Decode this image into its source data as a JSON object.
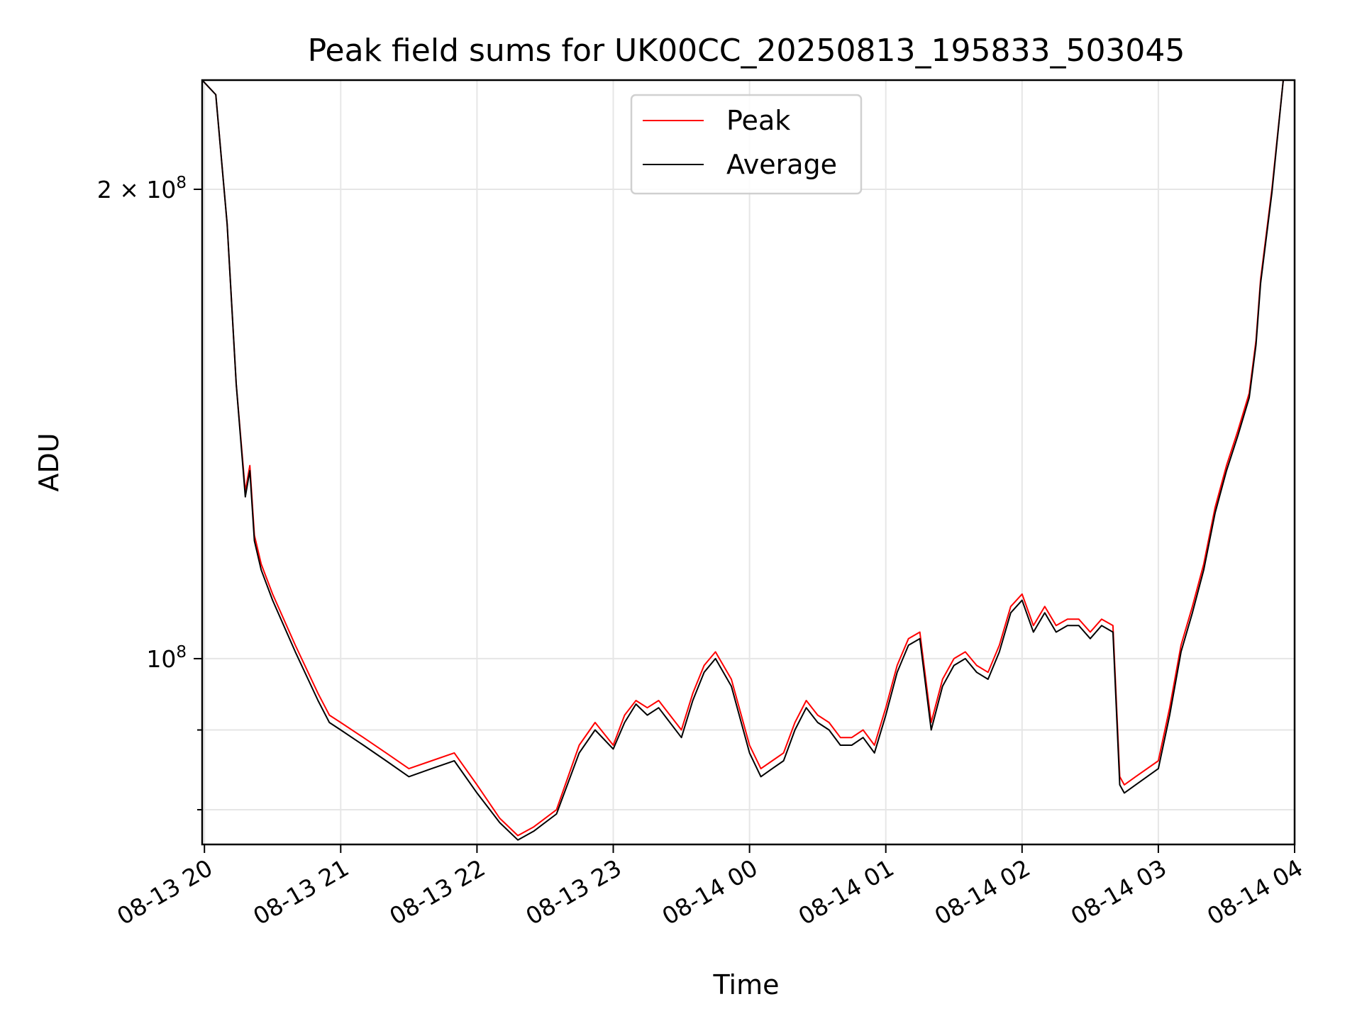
{
  "chart_data": {
    "type": "line",
    "title": "Peak field sums for UK00CC_20250813_195833_503045",
    "xlabel": "Time",
    "ylabel": "ADU",
    "yscale": "log",
    "ylim": [
      76000000,
      235000000
    ],
    "xlim": [
      "08-13 19:59",
      "08-14 04:00"
    ],
    "x_ticks": [
      "08-13 20",
      "08-13 21",
      "08-13 22",
      "08-13 23",
      "08-14 00",
      "08-14 01",
      "08-14 02",
      "08-14 03",
      "08-14 04"
    ],
    "y_ticks_major": [
      {
        "value": 200000000,
        "label": "2 × 10^8"
      },
      {
        "value": 100000000,
        "label": "10^8"
      }
    ],
    "y_ticks_minor": [
      80000000,
      90000000
    ],
    "grid": true,
    "legend": "top-center",
    "colors": {
      "Peak": "#ff0000",
      "Average": "#000000"
    },
    "series": [
      {
        "name": "Peak",
        "x": [
          "08-13 19:59",
          "08-13 20:05",
          "08-13 20:10",
          "08-13 20:14",
          "08-13 20:18",
          "08-13 20:20",
          "08-13 20:22",
          "08-13 20:25",
          "08-13 20:30",
          "08-13 20:40",
          "08-13 20:50",
          "08-13 20:55",
          "08-13 21:00",
          "08-13 21:10",
          "08-13 21:20",
          "08-13 21:30",
          "08-13 21:40",
          "08-13 21:50",
          "08-13 22:00",
          "08-13 22:10",
          "08-13 22:18",
          "08-13 22:25",
          "08-13 22:35",
          "08-13 22:45",
          "08-13 22:52",
          "08-13 23:00",
          "08-13 23:05",
          "08-13 23:10",
          "08-13 23:15",
          "08-13 23:20",
          "08-13 23:30",
          "08-13 23:35",
          "08-13 23:40",
          "08-13 23:45",
          "08-13 23:52",
          "08-14 00:00",
          "08-14 00:05",
          "08-14 00:10",
          "08-14 00:15",
          "08-14 00:20",
          "08-14 00:25",
          "08-14 00:30",
          "08-14 00:35",
          "08-14 00:40",
          "08-14 00:45",
          "08-14 00:50",
          "08-14 00:55",
          "08-14 01:00",
          "08-14 01:05",
          "08-14 01:10",
          "08-14 01:15",
          "08-14 01:20",
          "08-14 01:25",
          "08-14 01:30",
          "08-14 01:35",
          "08-14 01:40",
          "08-14 01:45",
          "08-14 01:50",
          "08-14 01:55",
          "08-14 02:00",
          "08-14 02:05",
          "08-14 02:10",
          "08-14 02:15",
          "08-14 02:20",
          "08-14 02:25",
          "08-14 02:30",
          "08-14 02:35",
          "08-14 02:40",
          "08-14 02:43",
          "08-14 02:45",
          "08-14 02:50",
          "08-14 03:00",
          "08-14 03:05",
          "08-14 03:10",
          "08-14 03:15",
          "08-14 03:20",
          "08-14 03:25",
          "08-14 03:30",
          "08-14 03:35",
          "08-14 03:40",
          "08-14 03:43",
          "08-14 03:45",
          "08-14 03:50",
          "08-14 03:55"
        ],
        "values": [
          235000000,
          230000000,
          190000000,
          150000000,
          128000000,
          133000000,
          120000000,
          115000000,
          110000000,
          102000000,
          95000000,
          92000000,
          91000000,
          89000000,
          87000000,
          85000000,
          86000000,
          87000000,
          83000000,
          79000000,
          77000000,
          78000000,
          80000000,
          88000000,
          91000000,
          88000000,
          92000000,
          94000000,
          93000000,
          94000000,
          90000000,
          95000000,
          99000000,
          101000000,
          97000000,
          88000000,
          85000000,
          86000000,
          87000000,
          91000000,
          94000000,
          92000000,
          91000000,
          89000000,
          89000000,
          90000000,
          88000000,
          93000000,
          99000000,
          103000000,
          104000000,
          91000000,
          97000000,
          100000000,
          101000000,
          99000000,
          98000000,
          102000000,
          108000000,
          110000000,
          105000000,
          108000000,
          105000000,
          106000000,
          106000000,
          104000000,
          106000000,
          105000000,
          84000000,
          83000000,
          84000000,
          86000000,
          93000000,
          102000000,
          108000000,
          115000000,
          125000000,
          133000000,
          140000000,
          148000000,
          160000000,
          175000000,
          200000000,
          235000000
        ]
      },
      {
        "name": "Average",
        "x": [
          "08-13 19:59",
          "08-13 20:05",
          "08-13 20:10",
          "08-13 20:14",
          "08-13 20:18",
          "08-13 20:20",
          "08-13 20:22",
          "08-13 20:25",
          "08-13 20:30",
          "08-13 20:40",
          "08-13 20:50",
          "08-13 20:55",
          "08-13 21:00",
          "08-13 21:10",
          "08-13 21:20",
          "08-13 21:30",
          "08-13 21:40",
          "08-13 21:50",
          "08-13 22:00",
          "08-13 22:10",
          "08-13 22:18",
          "08-13 22:25",
          "08-13 22:35",
          "08-13 22:45",
          "08-13 22:52",
          "08-13 23:00",
          "08-13 23:05",
          "08-13 23:10",
          "08-13 23:15",
          "08-13 23:20",
          "08-13 23:30",
          "08-13 23:35",
          "08-13 23:40",
          "08-13 23:45",
          "08-13 23:52",
          "08-14 00:00",
          "08-14 00:05",
          "08-14 00:10",
          "08-14 00:15",
          "08-14 00:20",
          "08-14 00:25",
          "08-14 00:30",
          "08-14 00:35",
          "08-14 00:40",
          "08-14 00:45",
          "08-14 00:50",
          "08-14 00:55",
          "08-14 01:00",
          "08-14 01:05",
          "08-14 01:10",
          "08-14 01:15",
          "08-14 01:20",
          "08-14 01:25",
          "08-14 01:30",
          "08-14 01:35",
          "08-14 01:40",
          "08-14 01:45",
          "08-14 01:50",
          "08-14 01:55",
          "08-14 02:00",
          "08-14 02:05",
          "08-14 02:10",
          "08-14 02:15",
          "08-14 02:20",
          "08-14 02:25",
          "08-14 02:30",
          "08-14 02:35",
          "08-14 02:40",
          "08-14 02:43",
          "08-14 02:45",
          "08-14 02:50",
          "08-14 03:00",
          "08-14 03:05",
          "08-14 03:10",
          "08-14 03:15",
          "08-14 03:20",
          "08-14 03:25",
          "08-14 03:30",
          "08-14 03:35",
          "08-14 03:40",
          "08-14 03:43",
          "08-14 03:45",
          "08-14 03:50",
          "08-14 03:55"
        ],
        "values": [
          235000000,
          230000000,
          190000000,
          150000000,
          127000000,
          132000000,
          119000000,
          114000000,
          109000000,
          101000000,
          94000000,
          91000000,
          90000000,
          88000000,
          86000000,
          84000000,
          85000000,
          86000000,
          82000000,
          78500000,
          76500000,
          77500000,
          79500000,
          87000000,
          90000000,
          87500000,
          91000000,
          93500000,
          92000000,
          93000000,
          89000000,
          94000000,
          98000000,
          100000000,
          96000000,
          87000000,
          84000000,
          85000000,
          86000000,
          90000000,
          93000000,
          91000000,
          90000000,
          88000000,
          88000000,
          89000000,
          87000000,
          92000000,
          98000000,
          102000000,
          103000000,
          90000000,
          96000000,
          99000000,
          100000000,
          98000000,
          97000000,
          101000000,
          107000000,
          109000000,
          104000000,
          107000000,
          104000000,
          105000000,
          105000000,
          103000000,
          105000000,
          104000000,
          83000000,
          82000000,
          83000000,
          85000000,
          92000000,
          101000000,
          107000000,
          114000000,
          124000000,
          132000000,
          139000000,
          147000000,
          159000000,
          174000000,
          199000000,
          235000000
        ]
      }
    ]
  }
}
